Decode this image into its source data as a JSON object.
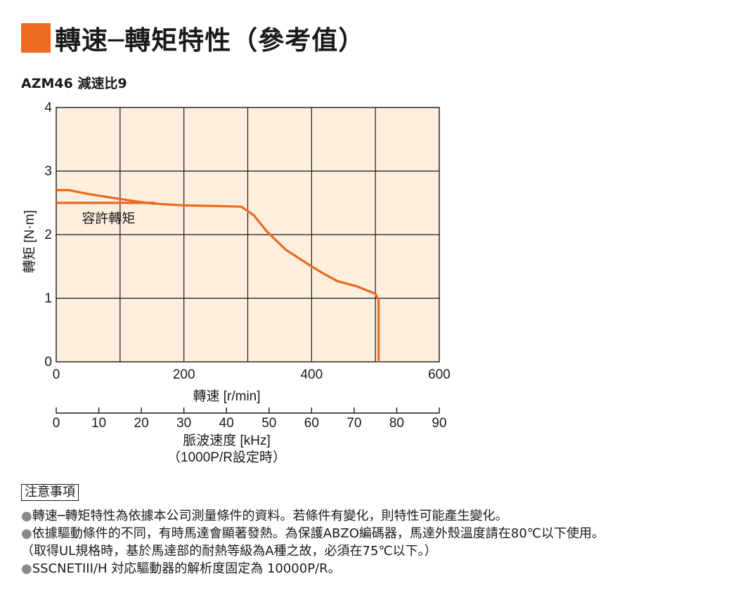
{
  "title": "轉速─轉矩特性（參考值）",
  "subtitle": "AZM46 減速比9",
  "colors": {
    "accent": "#ec6b1e",
    "plot_bg": "#fdeedd",
    "curve": "#ec6b1e"
  },
  "chart_data": {
    "type": "line",
    "xlabel": "轉速 [r/min]",
    "ylabel": "轉矩 [N·m]",
    "xlim": [
      0,
      600
    ],
    "ylim": [
      0,
      4
    ],
    "xticks": [
      "0",
      "200",
      "400",
      "600"
    ],
    "yticks": [
      "0",
      "1",
      "2",
      "3",
      "4"
    ],
    "grid": true,
    "series": [
      {
        "name": "",
        "x": [
          0,
          20,
          50,
          100,
          150,
          200,
          250,
          290,
          310,
          330,
          360,
          400,
          420,
          440,
          470,
          500,
          505,
          505
        ],
        "y": [
          2.7,
          2.7,
          2.64,
          2.56,
          2.49,
          2.46,
          2.45,
          2.44,
          2.3,
          2.05,
          1.76,
          1.5,
          1.38,
          1.27,
          1.19,
          1.07,
          0.97,
          0
        ]
      },
      {
        "name": "容許轉矩",
        "x": [
          0,
          155
        ],
        "y": [
          2.5,
          2.5
        ]
      }
    ],
    "secondary_axis": {
      "label_line1": "脈波速度 [kHz]",
      "label_line2": "（1000P/R設定時）",
      "xlim": [
        0,
        90
      ],
      "ticks": [
        "0",
        "10",
        "20",
        "30",
        "40",
        "50",
        "60",
        "70",
        "80",
        "90"
      ]
    },
    "annotation": "容許轉矩"
  },
  "notes": {
    "heading": "注意事項",
    "items": [
      "轉速─轉矩特性為依據本公司測量條件的資料。若條件有變化，則特性可能產生變化。",
      "依據驅動條件的不同，有時馬達會顯著發熱。為保護ABZO編碼器，馬達外殼溫度請在80℃以下使用。",
      "（取得UL規格時，基於馬達部的耐熱等級為A種之故，必須在75℃以下。）",
      "SSCNETIII/H 対応驅動器的解析度固定為 10000P/R。"
    ],
    "bullet": "●"
  }
}
